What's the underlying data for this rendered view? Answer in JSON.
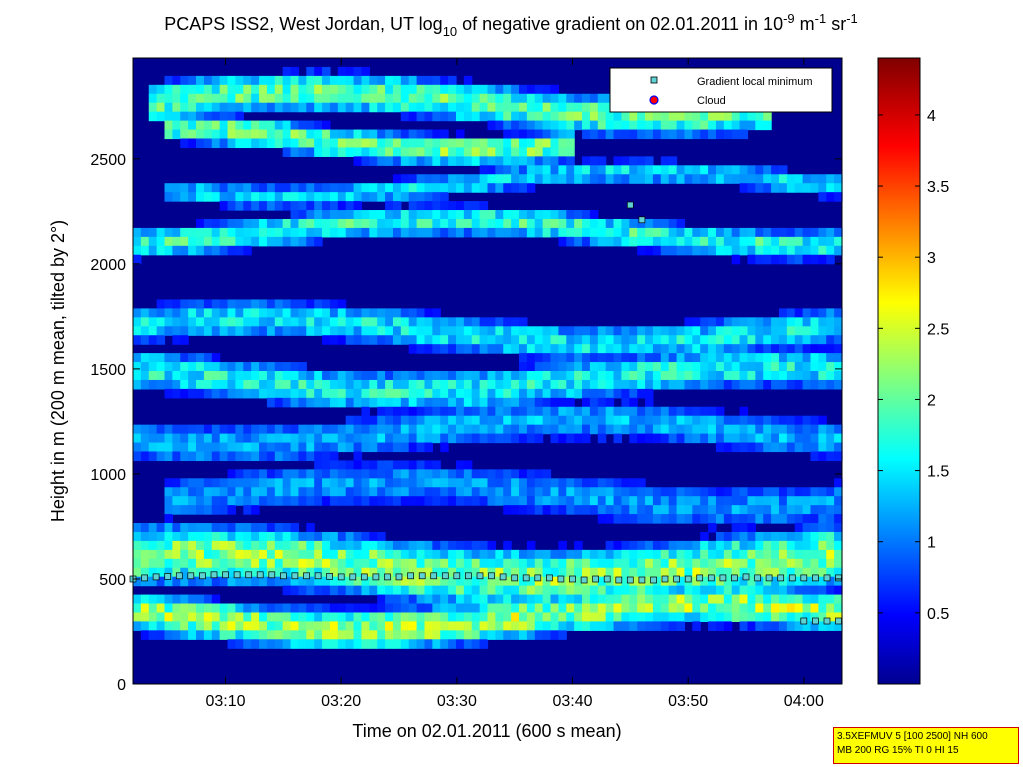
{
  "title": {
    "main": "PCAPS ISS2, West Jordan, UT log",
    "sub1": "10",
    "mid": " of negative gradient on 02.01.2011 in 10",
    "sup1": "-9",
    "unit_m": " m",
    "sup2": "-1",
    "unit_sr": " sr",
    "sup3": "-1"
  },
  "colors": {
    "background_field": "#00008f",
    "low": "#00008f",
    "cyan": "#00ffff",
    "yellow": "#ffff00",
    "red": "#ff0000",
    "marker_fill": "#5fd3d3",
    "cloud_fill": "#ff0000",
    "cloud_edge": "#0000ff"
  },
  "chart_data": {
    "type": "heatmap",
    "xlabel": "Time on 02.01.2011 (600 s mean)",
    "ylabel": "Height in m (200 m mean, tilted by 2°)",
    "x_range_minutes": [
      182,
      243.3
    ],
    "x_ticks": [
      {
        "min": 190,
        "label": "03:10"
      },
      {
        "min": 200,
        "label": "03:20"
      },
      {
        "min": 210,
        "label": "03:30"
      },
      {
        "min": 220,
        "label": "03:40"
      },
      {
        "min": 230,
        "label": "03:50"
      },
      {
        "min": 240,
        "label": "04:00"
      }
    ],
    "y_range": [
      0,
      2980
    ],
    "y_ticks": [
      0,
      500,
      1000,
      1500,
      2000,
      2500
    ],
    "colorbar": {
      "range": [
        0,
        4.4
      ],
      "ticks": [
        0.5,
        1,
        1.5,
        2,
        2.5,
        3,
        3.5,
        4
      ],
      "tick_labels": [
        "0.5",
        "1",
        "1.5",
        "2",
        "2.5",
        "3",
        "3.5",
        "4"
      ]
    },
    "legend": {
      "placement": "top-right",
      "entries": [
        {
          "label": "Gradient local minimum",
          "marker": "square",
          "color": "#5fd3d3"
        },
        {
          "label": "Cloud",
          "marker": "circle",
          "color": "#ff0000"
        }
      ]
    },
    "bands": [
      {
        "y": 2760,
        "half": 120,
        "v": 2.0,
        "start": 0.02,
        "end": 0.9
      },
      {
        "y": 2600,
        "half": 90,
        "v": 2.1,
        "start": 0.05,
        "end": 0.62
      },
      {
        "y": 2380,
        "half": 70,
        "v": 1.5,
        "start": 0.05,
        "end": 1.0
      },
      {
        "y": 2150,
        "half": 90,
        "v": 1.8,
        "start": 0.0,
        "end": 1.0
      },
      {
        "y": 1680,
        "half": 110,
        "v": 1.6,
        "start": 0.0,
        "end": 1.0
      },
      {
        "y": 1450,
        "half": 120,
        "v": 1.7,
        "start": 0.0,
        "end": 1.0
      },
      {
        "y": 1200,
        "half": 120,
        "v": 1.3,
        "start": 0.0,
        "end": 1.0
      },
      {
        "y": 900,
        "half": 130,
        "v": 1.2,
        "start": 0.05,
        "end": 1.0
      },
      {
        "y": 560,
        "half": 180,
        "v": 2.2,
        "start": 0.0,
        "end": 1.0
      },
      {
        "y": 320,
        "half": 120,
        "v": 2.3,
        "start": 0.0,
        "end": 1.0
      }
    ],
    "gradient_minima_series": {
      "name": "Gradient local minimum",
      "x_min": [
        182,
        183,
        184,
        185,
        186,
        187,
        188,
        189,
        190,
        191,
        192,
        193,
        194,
        195,
        196,
        197,
        198,
        199,
        200,
        201,
        202,
        203,
        204,
        205,
        206,
        207,
        208,
        209,
        210,
        211,
        212,
        213,
        214,
        215,
        216,
        217,
        218,
        219,
        220,
        221,
        222,
        223,
        224,
        225,
        226,
        227,
        228,
        229,
        230,
        231,
        232,
        233,
        234,
        235,
        236,
        237,
        238,
        239,
        240,
        241,
        242,
        243,
        240,
        241,
        242,
        243,
        225,
        226
      ],
      "y_m": [
        500,
        505,
        510,
        512,
        515,
        515,
        515,
        520,
        520,
        520,
        520,
        520,
        520,
        515,
        515,
        515,
        515,
        512,
        510,
        510,
        510,
        510,
        510,
        510,
        515,
        515,
        515,
        515,
        515,
        515,
        515,
        515,
        510,
        505,
        505,
        505,
        505,
        500,
        500,
        495,
        500,
        500,
        495,
        495,
        495,
        495,
        500,
        500,
        500,
        505,
        505,
        505,
        505,
        510,
        505,
        505,
        505,
        505,
        505,
        505,
        505,
        505,
        300,
        300,
        300,
        300,
        2280,
        2210
      ]
    },
    "cloud_series": {
      "name": "Cloud",
      "x_min": [],
      "y_m": []
    }
  },
  "info_box": {
    "line1": "3.5XEFMUV 5 [100 2500] NH 600",
    "line2": "MB 200 RG 15% TI 0 HI 15"
  }
}
